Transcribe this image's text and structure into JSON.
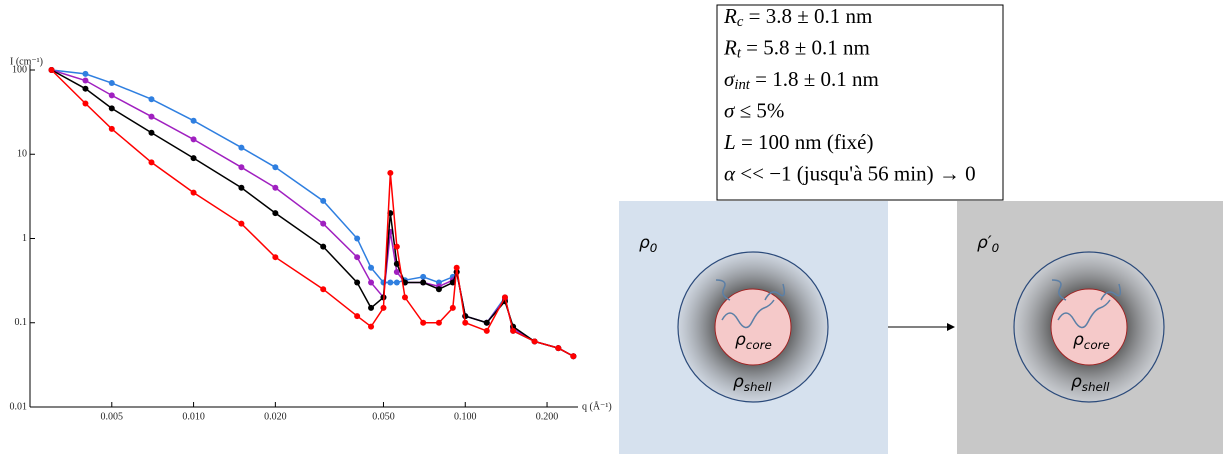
{
  "chart_data": {
    "type": "scatter",
    "x_label": "q (Å⁻¹)",
    "y_label": "I (cm⁻¹)",
    "log_x": true,
    "log_y": true,
    "x": [
      0.003,
      0.004,
      0.005,
      0.007,
      0.01,
      0.015,
      0.02,
      0.03,
      0.04,
      0.045,
      0.05,
      0.053,
      0.056,
      0.06,
      0.07,
      0.08,
      0.09,
      0.093,
      0.1,
      0.12,
      0.14,
      0.15,
      0.18,
      0.22,
      0.25
    ],
    "series": [
      {
        "color": "#2f7fe0",
        "values": [
          100,
          90,
          70,
          45,
          25,
          12,
          7,
          2.8,
          1.0,
          0.45,
          0.3,
          0.3,
          0.3,
          0.32,
          0.35,
          0.3,
          0.35,
          0.4,
          0.12,
          0.1,
          0.2,
          0.08,
          0.06,
          0.05,
          0.04
        ]
      },
      {
        "color": "#a020c0",
        "values": [
          100,
          75,
          50,
          28,
          15,
          7,
          4,
          1.5,
          0.6,
          0.3,
          0.2,
          1.2,
          0.4,
          0.3,
          0.3,
          0.27,
          0.32,
          0.4,
          0.12,
          0.1,
          0.19,
          0.085,
          0.06,
          0.05,
          0.04
        ]
      },
      {
        "color": "#000000",
        "values": [
          100,
          60,
          35,
          18,
          9,
          4,
          2,
          0.8,
          0.3,
          0.15,
          0.2,
          2,
          0.5,
          0.3,
          0.3,
          0.25,
          0.3,
          0.4,
          0.12,
          0.1,
          0.18,
          0.09,
          0.06,
          0.05,
          0.04
        ]
      },
      {
        "color": "#ff0000",
        "values": [
          100,
          40,
          20,
          8,
          3.5,
          1.5,
          0.6,
          0.25,
          0.12,
          0.09,
          0.15,
          6,
          0.8,
          0.2,
          0.1,
          0.1,
          0.15,
          0.45,
          0.1,
          0.08,
          0.2,
          0.08,
          0.06,
          0.05,
          0.04
        ]
      }
    ],
    "xlim": [
      0.0025,
      0.26
    ],
    "ylim": [
      0.01,
      100
    ],
    "xticks": [
      {
        "value": 0.005,
        "label": "0.005"
      },
      {
        "value": 0.01,
        "label": "0.010"
      },
      {
        "value": 0.02,
        "label": "0.020"
      },
      {
        "value": 0.05,
        "label": "0.050"
      },
      {
        "value": 0.1,
        "label": "0.100"
      },
      {
        "value": 0.2,
        "label": "0.200"
      }
    ],
    "yticks": [
      0.01,
      0.1,
      1,
      10,
      100
    ]
  },
  "parameters": [
    {
      "sym": "R",
      "sub": "c",
      "rest": " = 3.8 ± 0.1 nm"
    },
    {
      "sym": "R",
      "sub": "t",
      "rest": " = 5.8 ± 0.1 nm"
    },
    {
      "sym": "σ",
      "sub": "int",
      "rest": " = 1.8 ± 0.1 nm"
    },
    {
      "sym": "σ",
      "rest": " ≤ 5%"
    },
    {
      "sym": "L",
      "rest": " = 100 nm (fixé)"
    },
    {
      "sym": "α",
      "rest": " << −1 (jusqu'à 56 min) → 0"
    }
  ],
  "diagram": {
    "panels": [
      {
        "medium": {
          "sym": "ρ",
          "sub": "0"
        },
        "core": {
          "sym": "ρ",
          "sub": "core"
        },
        "shell": {
          "sym": "ρ",
          "sub": "shell"
        }
      },
      {
        "medium": {
          "sym": "ρ′",
          "sub": "0"
        },
        "core": {
          "sym": "ρ",
          "sub": "core"
        },
        "shell": {
          "sym": "ρ",
          "sub": "shell"
        }
      }
    ]
  }
}
